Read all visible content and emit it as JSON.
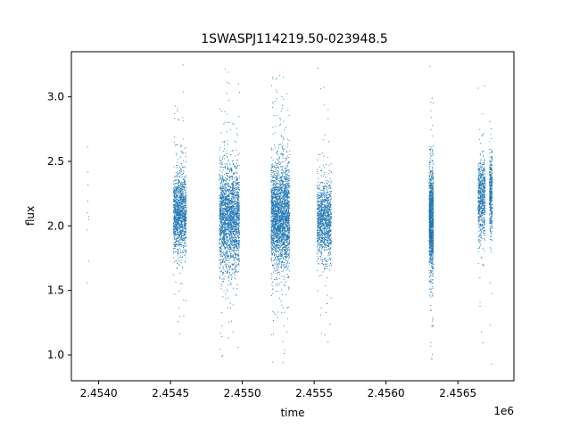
{
  "chart_data": {
    "type": "scatter",
    "title": "1SWASPJ114219.50-023948.5",
    "xlabel": "time",
    "ylabel": "flux",
    "x_offset_label": "1e6",
    "xlim": [
      2453810,
      2456890
    ],
    "ylim": [
      0.8,
      3.35
    ],
    "x_ticks": [
      2454000,
      2454500,
      2455000,
      2455500,
      2456000,
      2456500
    ],
    "x_tick_labels": [
      "2.4540",
      "2.4545",
      "2.4550",
      "2.4555",
      "2.4560",
      "2.4565"
    ],
    "y_ticks": [
      1.0,
      1.5,
      2.0,
      2.5,
      3.0
    ],
    "y_tick_labels": [
      "1.0",
      "1.5",
      "2.0",
      "2.5",
      "3.0"
    ],
    "grid": false,
    "marker_color": "#1f77b4",
    "clusters": [
      {
        "time_range": [
          2453920,
          2453930
        ],
        "flux_center": 2.25,
        "flux_spread": 0.25,
        "points": 10
      },
      {
        "time_range": [
          2454520,
          2454610
        ],
        "flux_center": 2.1,
        "flux_spread": 0.15,
        "points": 1400
      },
      {
        "time_range": [
          2454840,
          2454980
        ],
        "flux_center": 2.05,
        "flux_spread": 0.2,
        "points": 2300
      },
      {
        "time_range": [
          2455200,
          2455330
        ],
        "flux_center": 2.08,
        "flux_spread": 0.2,
        "points": 2600
      },
      {
        "time_range": [
          2455520,
          2455620
        ],
        "flux_center": 2.05,
        "flux_spread": 0.15,
        "points": 1200
      },
      {
        "time_range": [
          2456300,
          2456330
        ],
        "flux_center": 2.05,
        "flux_spread": 0.2,
        "points": 1300
      },
      {
        "time_range": [
          2456640,
          2456690
        ],
        "flux_center": 2.2,
        "flux_spread": 0.15,
        "points": 700
      },
      {
        "time_range": [
          2456720,
          2456740
        ],
        "flux_center": 2.25,
        "flux_spread": 0.15,
        "points": 400
      }
    ]
  }
}
